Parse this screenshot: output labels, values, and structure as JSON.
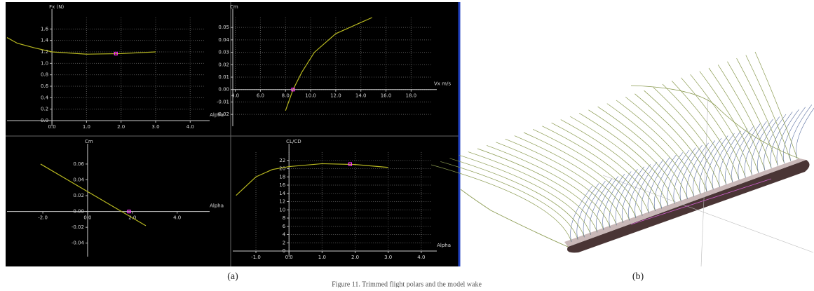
{
  "chart_data": [
    {
      "type": "line",
      "ylabel": "Fx (N)",
      "xlabel": "Alpha",
      "xlim": [
        -1.3,
        4.4
      ],
      "ylim": [
        0,
        1.8
      ],
      "xticks": [
        {
          "value": 0,
          "label": "0.0"
        },
        {
          "value": 1,
          "label": "1.0"
        },
        {
          "value": 2,
          "label": "2.0"
        },
        {
          "value": 3,
          "label": "3.0"
        },
        {
          "value": 4,
          "label": "4.0"
        }
      ],
      "yticks": [
        {
          "value": 0,
          "label": "0.0"
        },
        {
          "value": 0.2,
          "label": "0.2"
        },
        {
          "value": 0.4,
          "label": "0.4"
        },
        {
          "value": 0.6,
          "label": "0.6"
        },
        {
          "value": 0.8,
          "label": "0.8"
        },
        {
          "value": 1,
          "label": "1.0"
        },
        {
          "value": 1.2,
          "label": "1.2"
        },
        {
          "value": 1.4,
          "label": "1.4"
        },
        {
          "value": 1.6,
          "label": "1.6"
        }
      ],
      "grid": true,
      "series": [
        {
          "color": "#b8b820",
          "x": [
            -1.3,
            -1.0,
            -0.5,
            0,
            1,
            2,
            3
          ],
          "values": [
            1.45,
            1.35,
            1.27,
            1.2,
            1.16,
            1.17,
            1.2
          ]
        }
      ],
      "highlight": {
        "x": 1.85,
        "y": 1.17,
        "color": "#ff33ff"
      }
    },
    {
      "type": "line",
      "ylabel": "Cm",
      "xlabel": "Vx m/s",
      "xlim": [
        3.8,
        19.6
      ],
      "ylim": [
        -0.025,
        0.058
      ],
      "xticks": [
        {
          "value": 4,
          "label": "4.0"
        },
        {
          "value": 6,
          "label": "6.0"
        },
        {
          "value": 8,
          "label": "8.0"
        },
        {
          "value": 10,
          "label": "10.0"
        },
        {
          "value": 12,
          "label": "12.0"
        },
        {
          "value": 14,
          "label": "14.0"
        },
        {
          "value": 16,
          "label": "16.0"
        },
        {
          "value": 18,
          "label": "18.0"
        }
      ],
      "yticks": [
        {
          "value": -0.02,
          "label": "-0.02"
        },
        {
          "value": -0.01,
          "label": "-0.01"
        },
        {
          "value": 0,
          "label": "0.00"
        },
        {
          "value": 0.01,
          "label": "0.01"
        },
        {
          "value": 0.02,
          "label": "0.02"
        },
        {
          "value": 0.03,
          "label": "0.03"
        },
        {
          "value": 0.04,
          "label": "0.04"
        },
        {
          "value": 0.05,
          "label": "0.05"
        }
      ],
      "grid": true,
      "series": [
        {
          "color": "#b8b820",
          "x": [
            8,
            8.6,
            9.3,
            10.3,
            12,
            14,
            14.9
          ],
          "values": [
            -0.017,
            0,
            0.014,
            0.03,
            0.045,
            0.054,
            0.058
          ]
        }
      ],
      "highlight": {
        "x": 8.6,
        "y": 0,
        "color": "#ff33ff"
      }
    },
    {
      "type": "line",
      "ylabel": "Cm",
      "xlabel": "Alpha",
      "xlim": [
        -3.6,
        5.2
      ],
      "ylim": [
        -0.05,
        0.075
      ],
      "xticks": [
        {
          "value": -2,
          "label": "-2.0"
        },
        {
          "value": 0,
          "label": "0.0"
        },
        {
          "value": 2,
          "label": "2.0"
        },
        {
          "value": 4,
          "label": "4.0"
        }
      ],
      "yticks": [
        {
          "value": -0.04,
          "label": "-0.04"
        },
        {
          "value": -0.02,
          "label": "-0.02"
        },
        {
          "value": 0,
          "label": "0.00"
        },
        {
          "value": 0.02,
          "label": "0.02"
        },
        {
          "value": 0.04,
          "label": "0.04"
        },
        {
          "value": 0.06,
          "label": "0.06"
        }
      ],
      "grid": false,
      "series": [
        {
          "color": "#b8b820",
          "x": [
            -2.1,
            2.6
          ],
          "values": [
            0.06,
            -0.018
          ]
        }
      ],
      "highlight": {
        "x": 1.85,
        "y": 0,
        "color": "#ff33ff"
      }
    },
    {
      "type": "line",
      "ylabel": "CL/CD",
      "xlabel": "Alpha",
      "xlim": [
        -1.7,
        4.3
      ],
      "ylim": [
        0,
        24
      ],
      "xticks": [
        {
          "value": -1,
          "label": "-1.0"
        },
        {
          "value": 0,
          "label": "0.0"
        },
        {
          "value": 1,
          "label": "1.0"
        },
        {
          "value": 2,
          "label": "2.0"
        },
        {
          "value": 3,
          "label": "3.0"
        },
        {
          "value": 4,
          "label": "4.0"
        }
      ],
      "yticks": [
        0,
        2,
        4,
        6,
        8,
        10,
        12,
        14,
        16,
        18,
        20,
        22
      ],
      "grid": true,
      "series": [
        {
          "color": "#b8b820",
          "x": [
            -1.6,
            -1,
            -0.5,
            0,
            1,
            2,
            3
          ],
          "values": [
            13.5,
            18,
            19.8,
            20.5,
            21.2,
            21,
            20.3
          ]
        }
      ],
      "highlight": {
        "x": 1.85,
        "y": 21.1,
        "color": "#ff33ff"
      }
    }
  ],
  "figure": {
    "labels": [
      "(a)",
      "(b)"
    ],
    "caption": "Figure 11. Trimmed flight polars and the model wake"
  }
}
